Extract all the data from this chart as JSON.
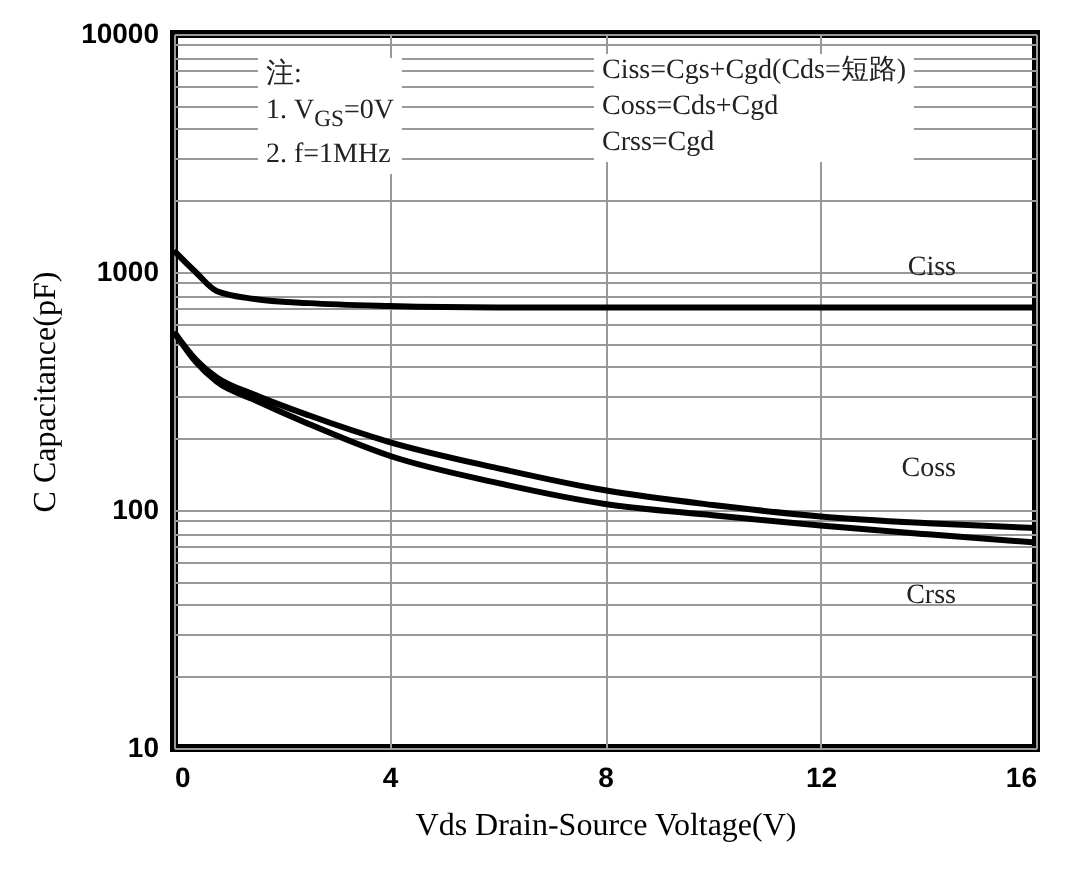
{
  "chart_data": {
    "type": "line",
    "xlabel": "Vds Drain-Source Voltage(V)",
    "ylabel": "C Capacitance(pF)",
    "log": "y",
    "grid": true,
    "marker": "none",
    "line_style": "solid",
    "xlim": [
      0,
      16
    ],
    "xticks": [
      0,
      4,
      8,
      12,
      16
    ],
    "ylim": [
      10,
      10000
    ],
    "yticks": [
      10,
      {
        "value": 20,
        "label": null
      },
      {
        "value": 30,
        "label": null
      },
      {
        "value": 40,
        "label": null
      },
      {
        "value": 50,
        "label": null
      },
      {
        "value": 60,
        "label": null
      },
      {
        "value": 70,
        "label": null
      },
      {
        "value": 80,
        "label": null
      },
      {
        "value": 90,
        "label": null
      },
      100,
      {
        "value": 200,
        "label": null
      },
      {
        "value": 300,
        "label": null
      },
      {
        "value": 400,
        "label": null
      },
      {
        "value": 500,
        "label": null
      },
      {
        "value": 600,
        "label": null
      },
      {
        "value": 700,
        "label": null
      },
      {
        "value": 800,
        "label": null
      },
      {
        "value": 900,
        "label": null
      },
      1000,
      {
        "value": 2000,
        "label": null
      },
      {
        "value": 3000,
        "label": null
      },
      {
        "value": 4000,
        "label": null
      },
      {
        "value": 5000,
        "label": null
      },
      {
        "value": 6000,
        "label": null
      },
      {
        "value": 7000,
        "label": null
      },
      {
        "value": 8000,
        "label": null
      },
      {
        "value": 9000,
        "label": null
      },
      10000
    ],
    "series": [
      {
        "name": "Ciss",
        "color": "#000000",
        "x": [
          0,
          0.4,
          0.8,
          1.5,
          2.5,
          4,
          6,
          8,
          12,
          16
        ],
        "values": [
          1230,
          1000,
          830,
          770,
          740,
          720,
          710,
          710,
          710,
          710
        ]
      },
      {
        "name": "Coss",
        "color": "#000000",
        "x": [
          0,
          0.4,
          0.8,
          1.5,
          2.5,
          4,
          6,
          8,
          10,
          12,
          14,
          16
        ],
        "values": [
          560,
          430,
          360,
          305,
          250,
          193,
          150,
          121,
          105,
          94,
          88,
          84
        ]
      },
      {
        "name": "Crss",
        "color": "#000000",
        "x": [
          0,
          0.4,
          0.8,
          1.5,
          2.5,
          4,
          6,
          8,
          10,
          12,
          14,
          16
        ],
        "values": [
          560,
          420,
          345,
          290,
          230,
          169,
          130,
          106,
          95,
          86,
          79,
          73
        ]
      }
    ],
    "annotations": [
      "注:",
      "1. V$_{GS}$=0V",
      "2. f=1MHz",
      "Ciss=Cgs+Cgd(Cds=短路)",
      "Coss=Cds+Cgd",
      "Crss=Cgd"
    ]
  }
}
